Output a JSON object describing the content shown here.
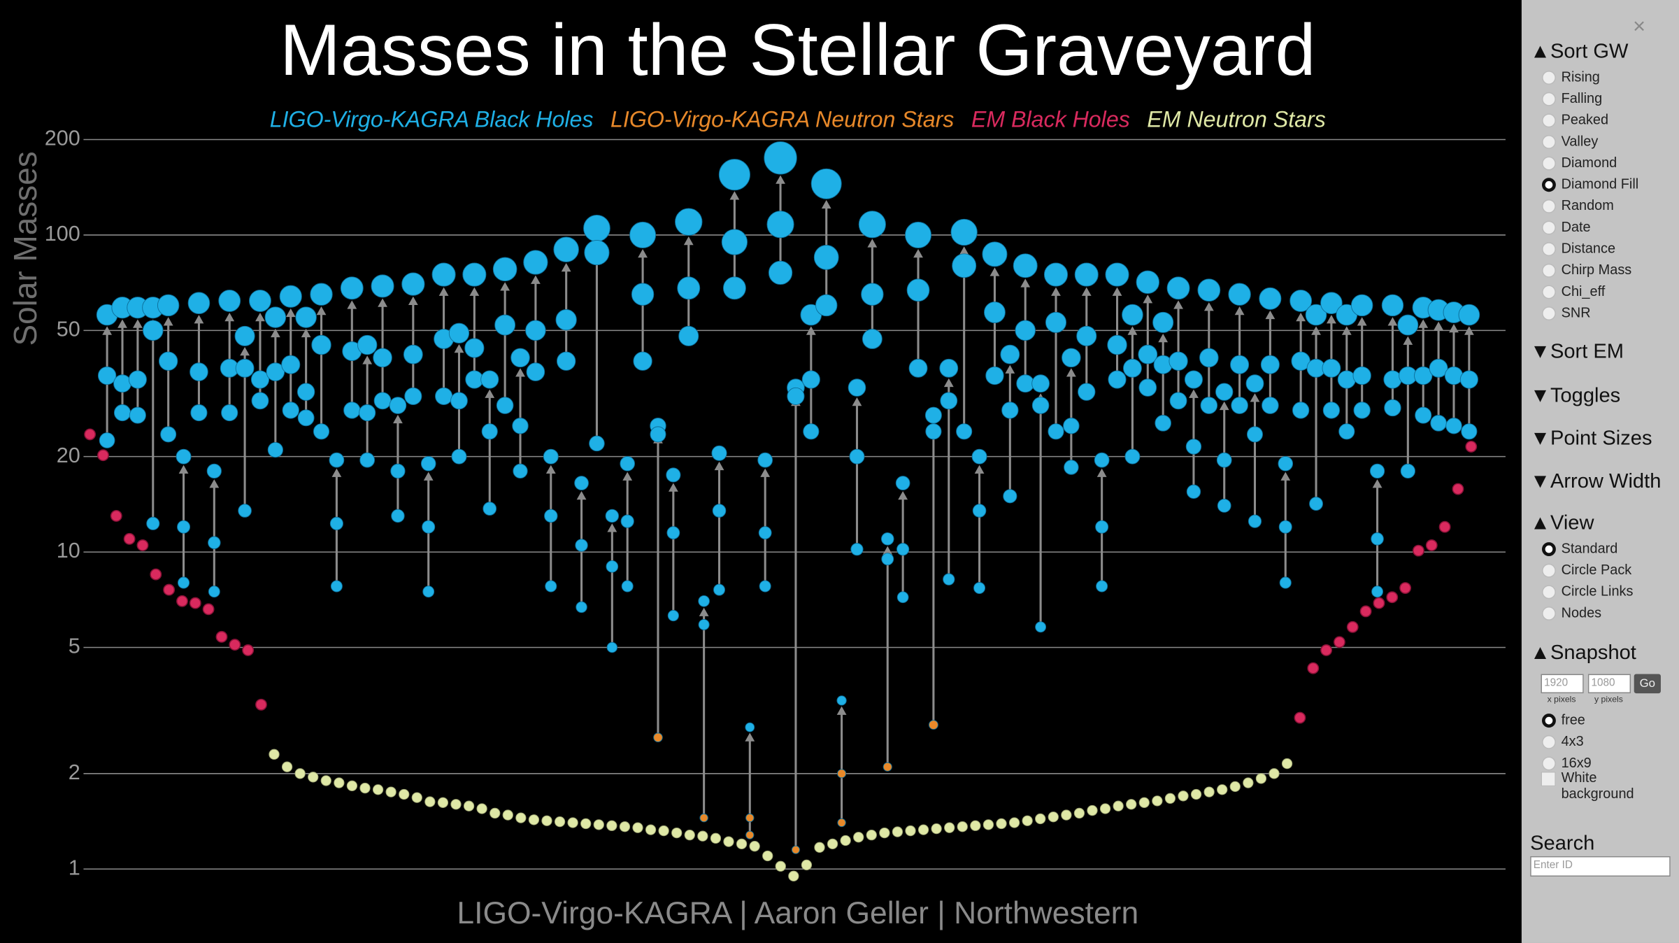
{
  "chart_data": {
    "type": "scatter",
    "title": "Masses in the Stellar Graveyard",
    "ylabel": "Solar Masses",
    "footer": "LIGO-Virgo-KAGRA | Aaron Geller | Northwestern",
    "log": true,
    "grid": true,
    "ylim": [
      0.9,
      220
    ],
    "yticks": [
      1,
      2,
      5,
      10,
      20,
      50,
      100,
      200
    ],
    "series": [
      {
        "name": "LIGO-Virgo-KAGRA Black Holes",
        "color": "#1fb0e6"
      },
      {
        "name": "LIGO-Virgo-KAGRA Neutron Stars",
        "color": "#e8892a"
      },
      {
        "name": "EM Black Holes",
        "color": "#d92a5e",
        "values": [
          23.5,
          20.2,
          13,
          11,
          10.5,
          8.5,
          7.6,
          7,
          6.9,
          6.6,
          5.4,
          5.1,
          4.9,
          3.3,
          3.0,
          4.3,
          4.9,
          5.2,
          5.8,
          6.5,
          6.9,
          7.2,
          7.7,
          10.1,
          10.5,
          12,
          15.8,
          21.5
        ]
      },
      {
        "name": "EM Neutron Stars",
        "color": "#dfe8a6",
        "values": [
          2.3,
          2.1,
          2.0,
          1.95,
          1.9,
          1.87,
          1.83,
          1.8,
          1.78,
          1.75,
          1.72,
          1.68,
          1.63,
          1.62,
          1.6,
          1.58,
          1.55,
          1.5,
          1.48,
          1.45,
          1.43,
          1.42,
          1.41,
          1.4,
          1.39,
          1.38,
          1.37,
          1.36,
          1.35,
          1.33,
          1.32,
          1.3,
          1.28,
          1.27,
          1.25,
          1.22,
          1.2,
          1.18,
          1.1,
          1.02,
          0.95,
          1.03,
          1.17,
          1.2,
          1.23,
          1.26,
          1.28,
          1.3,
          1.31,
          1.32,
          1.33,
          1.34,
          1.35,
          1.36,
          1.37,
          1.38,
          1.39,
          1.4,
          1.42,
          1.44,
          1.46,
          1.48,
          1.5,
          1.53,
          1.55,
          1.58,
          1.6,
          1.62,
          1.64,
          1.67,
          1.7,
          1.72,
          1.75,
          1.78,
          1.82,
          1.87,
          1.93,
          2.0,
          2.15
        ]
      }
    ],
    "events": [
      {
        "values": [
          56,
          36,
          22.5
        ],
        "series": [
          0,
          0,
          0
        ]
      },
      {
        "values": [
          59,
          34,
          27.5
        ],
        "series": [
          0,
          0,
          0
        ]
      },
      {
        "values": [
          59,
          35,
          27
        ],
        "series": [
          0,
          0,
          0
        ]
      },
      {
        "values": [
          59,
          50,
          12.3
        ],
        "series": [
          0,
          0,
          0
        ]
      },
      {
        "values": [
          60,
          40,
          23.5
        ],
        "series": [
          0,
          0,
          0
        ]
      },
      {
        "values": [
          20,
          12,
          8
        ],
        "series": [
          0,
          0,
          0
        ]
      },
      {
        "values": [
          61,
          37,
          27.5
        ],
        "series": [
          0,
          0,
          0
        ]
      },
      {
        "values": [
          18,
          10.7,
          7.5
        ],
        "series": [
          0,
          0,
          0
        ]
      },
      {
        "values": [
          62,
          38,
          27.5
        ],
        "series": [
          0,
          0,
          0
        ]
      },
      {
        "values": [
          48,
          38,
          13.5
        ],
        "series": [
          0,
          0,
          0
        ]
      },
      {
        "values": [
          62,
          35,
          30
        ],
        "series": [
          0,
          0,
          0
        ]
      },
      {
        "values": [
          55,
          37,
          21
        ],
        "series": [
          0,
          0,
          0
        ]
      },
      {
        "values": [
          64,
          39,
          28
        ],
        "series": [
          0,
          0,
          0
        ]
      },
      {
        "values": [
          55,
          32,
          26.5
        ],
        "series": [
          0,
          0,
          0
        ]
      },
      {
        "values": [
          65,
          45,
          24
        ],
        "series": [
          0,
          0,
          0
        ]
      },
      {
        "values": [
          19.5,
          12.3,
          7.8
        ],
        "series": [
          0,
          0,
          0
        ]
      },
      {
        "values": [
          68,
          43,
          28
        ],
        "series": [
          0,
          0,
          0
        ]
      },
      {
        "values": [
          45,
          27.5,
          19.5
        ],
        "series": [
          0,
          0,
          0
        ]
      },
      {
        "values": [
          69,
          41,
          30
        ],
        "series": [
          0,
          0,
          0
        ]
      },
      {
        "values": [
          29,
          18,
          13
        ],
        "series": [
          0,
          0,
          0
        ]
      },
      {
        "values": [
          70,
          42,
          31
        ],
        "series": [
          0,
          0,
          0
        ]
      },
      {
        "values": [
          19,
          12,
          7.5
        ],
        "series": [
          0,
          0,
          0
        ]
      },
      {
        "values": [
          75,
          47,
          31
        ],
        "series": [
          0,
          0,
          0
        ]
      },
      {
        "values": [
          49,
          30,
          20
        ],
        "series": [
          0,
          0,
          0
        ]
      },
      {
        "values": [
          75,
          44,
          35
        ],
        "series": [
          0,
          0,
          0
        ]
      },
      {
        "values": [
          35,
          24,
          13.7
        ],
        "series": [
          0,
          0,
          0
        ]
      },
      {
        "values": [
          78,
          52,
          29
        ],
        "series": [
          0,
          0,
          0
        ]
      },
      {
        "values": [
          41,
          25,
          18
        ],
        "series": [
          0,
          0,
          0
        ]
      },
      {
        "values": [
          82,
          50,
          37
        ],
        "series": [
          0,
          0,
          0
        ]
      },
      {
        "values": [
          20,
          13,
          7.8
        ],
        "series": [
          0,
          0,
          0
        ]
      },
      {
        "values": [
          90,
          54,
          40
        ],
        "series": [
          0,
          0,
          0
        ]
      },
      {
        "values": [
          16.5,
          10.5,
          6.7
        ],
        "series": [
          0,
          0,
          0
        ]
      },
      {
        "values": [
          105,
          88,
          22
        ],
        "series": [
          0,
          0,
          0
        ]
      },
      {
        "values": [
          13,
          9,
          5
        ],
        "series": [
          0,
          0,
          0
        ]
      },
      {
        "values": [
          19,
          12.5,
          7.8
        ],
        "series": [
          0,
          0,
          0
        ]
      },
      {
        "values": [
          100,
          65,
          40
        ],
        "series": [
          0,
          0,
          0
        ]
      },
      {
        "values": [
          25,
          23.5,
          2.6
        ],
        "series": [
          0,
          0,
          1
        ]
      },
      {
        "values": [
          17.5,
          11.5,
          6.3
        ],
        "series": [
          0,
          0,
          0
        ]
      },
      {
        "values": [
          110,
          68,
          48
        ],
        "series": [
          0,
          0,
          0
        ]
      },
      {
        "values": [
          7,
          5.9,
          1.45
        ],
        "series": [
          0,
          0,
          1
        ]
      },
      {
        "values": [
          20.5,
          13.5,
          7.6
        ],
        "series": [
          0,
          0,
          0
        ]
      },
      {
        "values": [
          155,
          95,
          68
        ],
        "series": [
          0,
          0,
          0
        ]
      },
      {
        "values": [
          2.8,
          1.45,
          1.28
        ],
        "series": [
          0,
          1,
          1
        ]
      },
      {
        "values": [
          19.5,
          11.5,
          7.8
        ],
        "series": [
          0,
          0,
          0
        ]
      },
      {
        "values": [
          175,
          108,
          76
        ],
        "series": [
          0,
          0,
          0
        ]
      },
      {
        "values": [
          33,
          31,
          1.15
        ],
        "series": [
          0,
          0,
          1
        ]
      },
      {
        "values": [
          56,
          35,
          24
        ],
        "series": [
          0,
          0,
          0
        ]
      },
      {
        "values": [
          145,
          85,
          60
        ],
        "series": [
          0,
          0,
          0
        ]
      },
      {
        "values": [
          3.4,
          2.0,
          1.4
        ],
        "series": [
          0,
          1,
          1
        ]
      },
      {
        "values": [
          33,
          20,
          10.2
        ],
        "series": [
          0,
          0,
          0
        ]
      },
      {
        "values": [
          108,
          65,
          47
        ],
        "series": [
          0,
          0,
          0
        ]
      },
      {
        "values": [
          11,
          9.5,
          2.1
        ],
        "series": [
          0,
          0,
          1
        ]
      },
      {
        "values": [
          16.5,
          10.2,
          7.2
        ],
        "series": [
          0,
          0,
          0
        ]
      },
      {
        "values": [
          100,
          67,
          38
        ],
        "series": [
          0,
          0,
          0
        ]
      },
      {
        "values": [
          27,
          24,
          2.85
        ],
        "series": [
          0,
          0,
          1
        ]
      },
      {
        "values": [
          38,
          30,
          8.2
        ],
        "series": [
          0,
          0,
          0
        ]
      },
      {
        "values": [
          102,
          80,
          24
        ],
        "series": [
          0,
          0,
          0
        ]
      },
      {
        "values": [
          20,
          13.5,
          7.7
        ],
        "series": [
          0,
          0,
          0
        ]
      },
      {
        "values": [
          87,
          57,
          36
        ],
        "series": [
          0,
          0,
          0
        ]
      },
      {
        "values": [
          42,
          28,
          15
        ],
        "series": [
          0,
          0,
          0
        ]
      },
      {
        "values": [
          80,
          50,
          34
        ],
        "series": [
          0,
          0,
          0
        ]
      },
      {
        "values": [
          34,
          29,
          5.8
        ],
        "series": [
          0,
          0,
          0
        ]
      },
      {
        "values": [
          75,
          53,
          24
        ],
        "series": [
          0,
          0,
          0
        ]
      },
      {
        "values": [
          41,
          25,
          18.5
        ],
        "series": [
          0,
          0,
          0
        ]
      },
      {
        "values": [
          75,
          48,
          32
        ],
        "series": [
          0,
          0,
          0
        ]
      },
      {
        "values": [
          19.5,
          12,
          7.8
        ],
        "series": [
          0,
          0,
          0
        ]
      },
      {
        "values": [
          75,
          45,
          35
        ],
        "series": [
          0,
          0,
          0
        ]
      },
      {
        "values": [
          56,
          38,
          20
        ],
        "series": [
          0,
          0,
          0
        ]
      },
      {
        "values": [
          71,
          42,
          33
        ],
        "series": [
          0,
          0,
          0
        ]
      },
      {
        "values": [
          53,
          39,
          25.5
        ],
        "series": [
          0,
          0,
          0
        ]
      },
      {
        "values": [
          68,
          40,
          30
        ],
        "series": [
          0,
          0,
          0
        ]
      },
      {
        "values": [
          35,
          21.5,
          15.5
        ],
        "series": [
          0,
          0,
          0
        ]
      },
      {
        "values": [
          67,
          41,
          29
        ],
        "series": [
          0,
          0,
          0
        ]
      },
      {
        "values": [
          32,
          19.5,
          14
        ],
        "series": [
          0,
          0,
          0
        ]
      },
      {
        "values": [
          65,
          39,
          29
        ],
        "series": [
          0,
          0,
          0
        ]
      },
      {
        "values": [
          34,
          23.5,
          12.5
        ],
        "series": [
          0,
          0,
          0
        ]
      },
      {
        "values": [
          63,
          39,
          29
        ],
        "series": [
          0,
          0,
          0
        ]
      },
      {
        "values": [
          19,
          12,
          8
        ],
        "series": [
          0,
          0,
          0
        ]
      },
      {
        "values": [
          62,
          40,
          28
        ],
        "series": [
          0,
          0,
          0
        ]
      },
      {
        "values": [
          56,
          38,
          14.2
        ],
        "series": [
          0,
          0,
          0
        ]
      },
      {
        "values": [
          61,
          38,
          28
        ],
        "series": [
          0,
          0,
          0
        ]
      },
      {
        "values": [
          56,
          35,
          24
        ],
        "series": [
          0,
          0,
          0
        ]
      },
      {
        "values": [
          60,
          36,
          28
        ],
        "series": [
          0,
          0,
          0
        ]
      },
      {
        "values": [
          18,
          11,
          7.5
        ],
        "series": [
          0,
          0,
          0
        ]
      },
      {
        "values": [
          60,
          35,
          28.5
        ],
        "series": [
          0,
          0,
          0
        ]
      },
      {
        "values": [
          52,
          36,
          18
        ],
        "series": [
          0,
          0,
          0
        ]
      },
      {
        "values": [
          59,
          36,
          27
        ],
        "series": [
          0,
          0,
          0
        ]
      },
      {
        "values": [
          58,
          38,
          25.5
        ],
        "series": [
          0,
          0,
          0
        ]
      },
      {
        "values": [
          57,
          36,
          25
        ],
        "series": [
          0,
          0,
          0
        ]
      },
      {
        "values": [
          56,
          35,
          24
        ],
        "series": [
          0,
          0,
          0
        ]
      }
    ]
  },
  "panel": {
    "close": "×",
    "sections": [
      {
        "title": "▲Sort GW",
        "options": [
          "Rising",
          "Falling",
          "Peaked",
          "Valley",
          "Diamond",
          "Diamond Fill",
          "Random",
          "Date",
          "Distance",
          "Chirp Mass",
          "Chi_eff",
          "SNR"
        ],
        "selected": 5
      },
      {
        "title": "▼Sort EM"
      },
      {
        "title": "▼Toggles"
      },
      {
        "title": "▼Point Sizes"
      },
      {
        "title": "▼Arrow Width"
      },
      {
        "title": "▲View",
        "options": [
          "Standard",
          "Circle Pack",
          "Circle Links",
          "Nodes"
        ],
        "selected": 0
      },
      {
        "title": "▲Snapshot",
        "x_value": "1920",
        "x_caption": "x pixels",
        "y_value": "1080",
        "y_caption": "y pixels",
        "button": "Go",
        "options": [
          "free",
          "4x3",
          "16x9"
        ],
        "selected": 0,
        "checkbox": "White background"
      }
    ],
    "search": {
      "title": "Search",
      "placeholder": "Enter ID"
    }
  }
}
